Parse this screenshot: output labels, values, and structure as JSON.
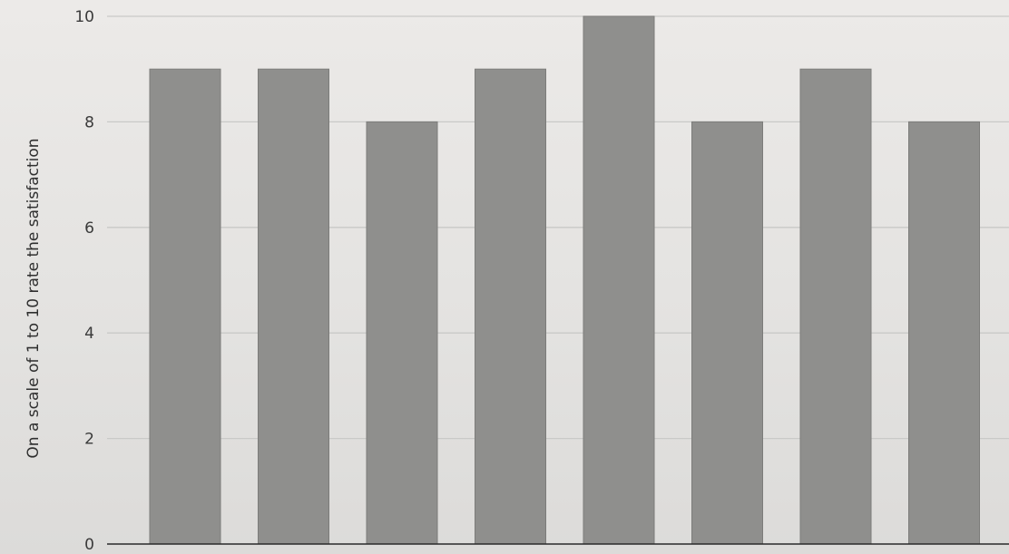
{
  "chart_data": {
    "type": "bar",
    "title": "",
    "xlabel": "",
    "ylabel": "On a scale of 1 to 10 rate the satisfaction",
    "ylim": [
      0,
      10
    ],
    "yticks": [
      "0",
      "2",
      "4",
      "6",
      "8",
      "10"
    ],
    "categories": [
      "",
      "",
      "",
      "",
      "",
      "",
      "",
      ""
    ],
    "values": [
      9,
      9,
      8,
      9,
      10,
      8,
      9,
      8
    ],
    "grid": true,
    "legend": "none",
    "bar_color": "#8f8f8d"
  }
}
